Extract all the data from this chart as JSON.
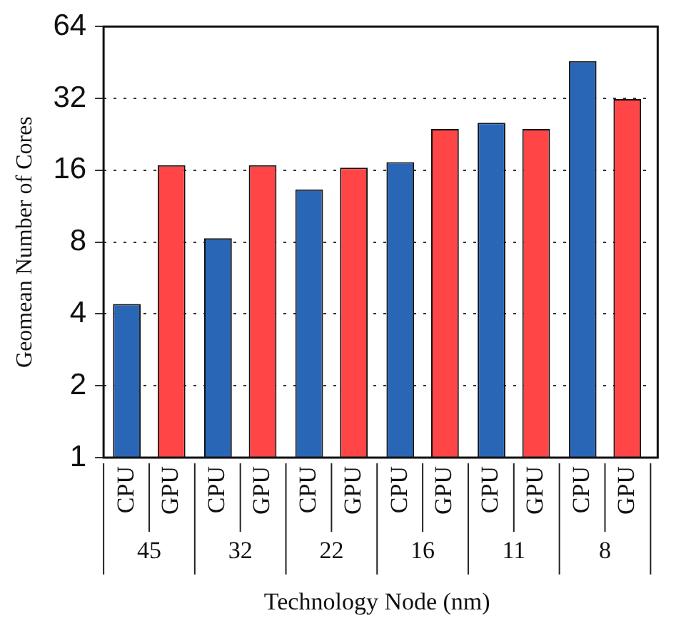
{
  "chart_data": {
    "type": "bar",
    "xlabel": "Technology Node (nm)",
    "ylabel": "Geomean Number of Cores",
    "categories": [
      "45",
      "32",
      "22",
      "16",
      "11",
      "8"
    ],
    "series": [
      {
        "name": "CPU",
        "color": "#2a66b6",
        "values": [
          4.4,
          8.3,
          13.3,
          17.3,
          25.3,
          45.8
        ]
      },
      {
        "name": "GPU",
        "color": "#ff4545",
        "values": [
          16.8,
          16.8,
          16.4,
          23.8,
          23.8,
          31.8
        ]
      }
    ],
    "log": "y",
    "ylim": [
      1,
      64
    ],
    "yticks": [
      1,
      2,
      4,
      8,
      16,
      32,
      64
    ],
    "grid": "y"
  }
}
